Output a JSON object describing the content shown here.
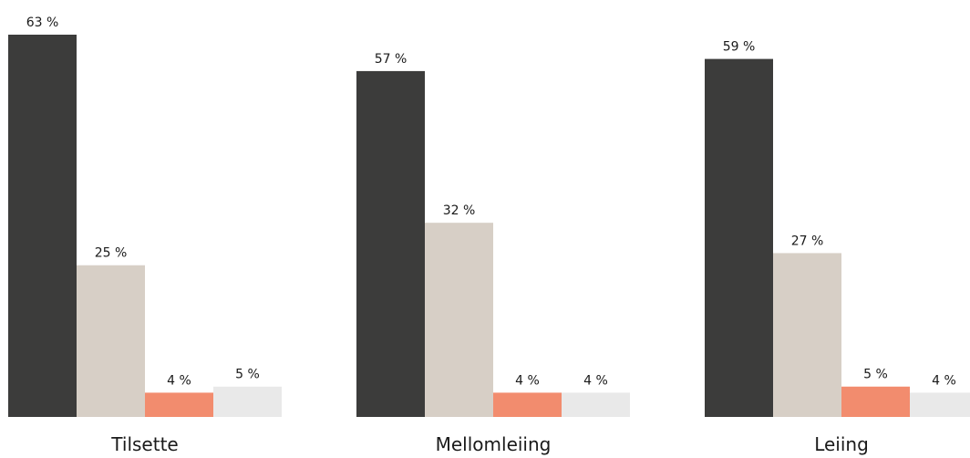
{
  "chart_data": {
    "type": "bar",
    "categories": [
      "Tilsette",
      "Mellomleiing",
      "Leiing"
    ],
    "series": [
      {
        "values": [
          63,
          57,
          59
        ],
        "color": "#3c3c3b"
      },
      {
        "values": [
          25,
          32,
          27
        ],
        "color": "#d7cfc6"
      },
      {
        "values": [
          4,
          4,
          5
        ],
        "color": "#f28c6e"
      },
      {
        "values": [
          5,
          4,
          4
        ],
        "color": "#e9e9e9"
      }
    ],
    "value_suffix": " %",
    "ylim": [
      0,
      63
    ],
    "grid": false,
    "legend": "none"
  }
}
